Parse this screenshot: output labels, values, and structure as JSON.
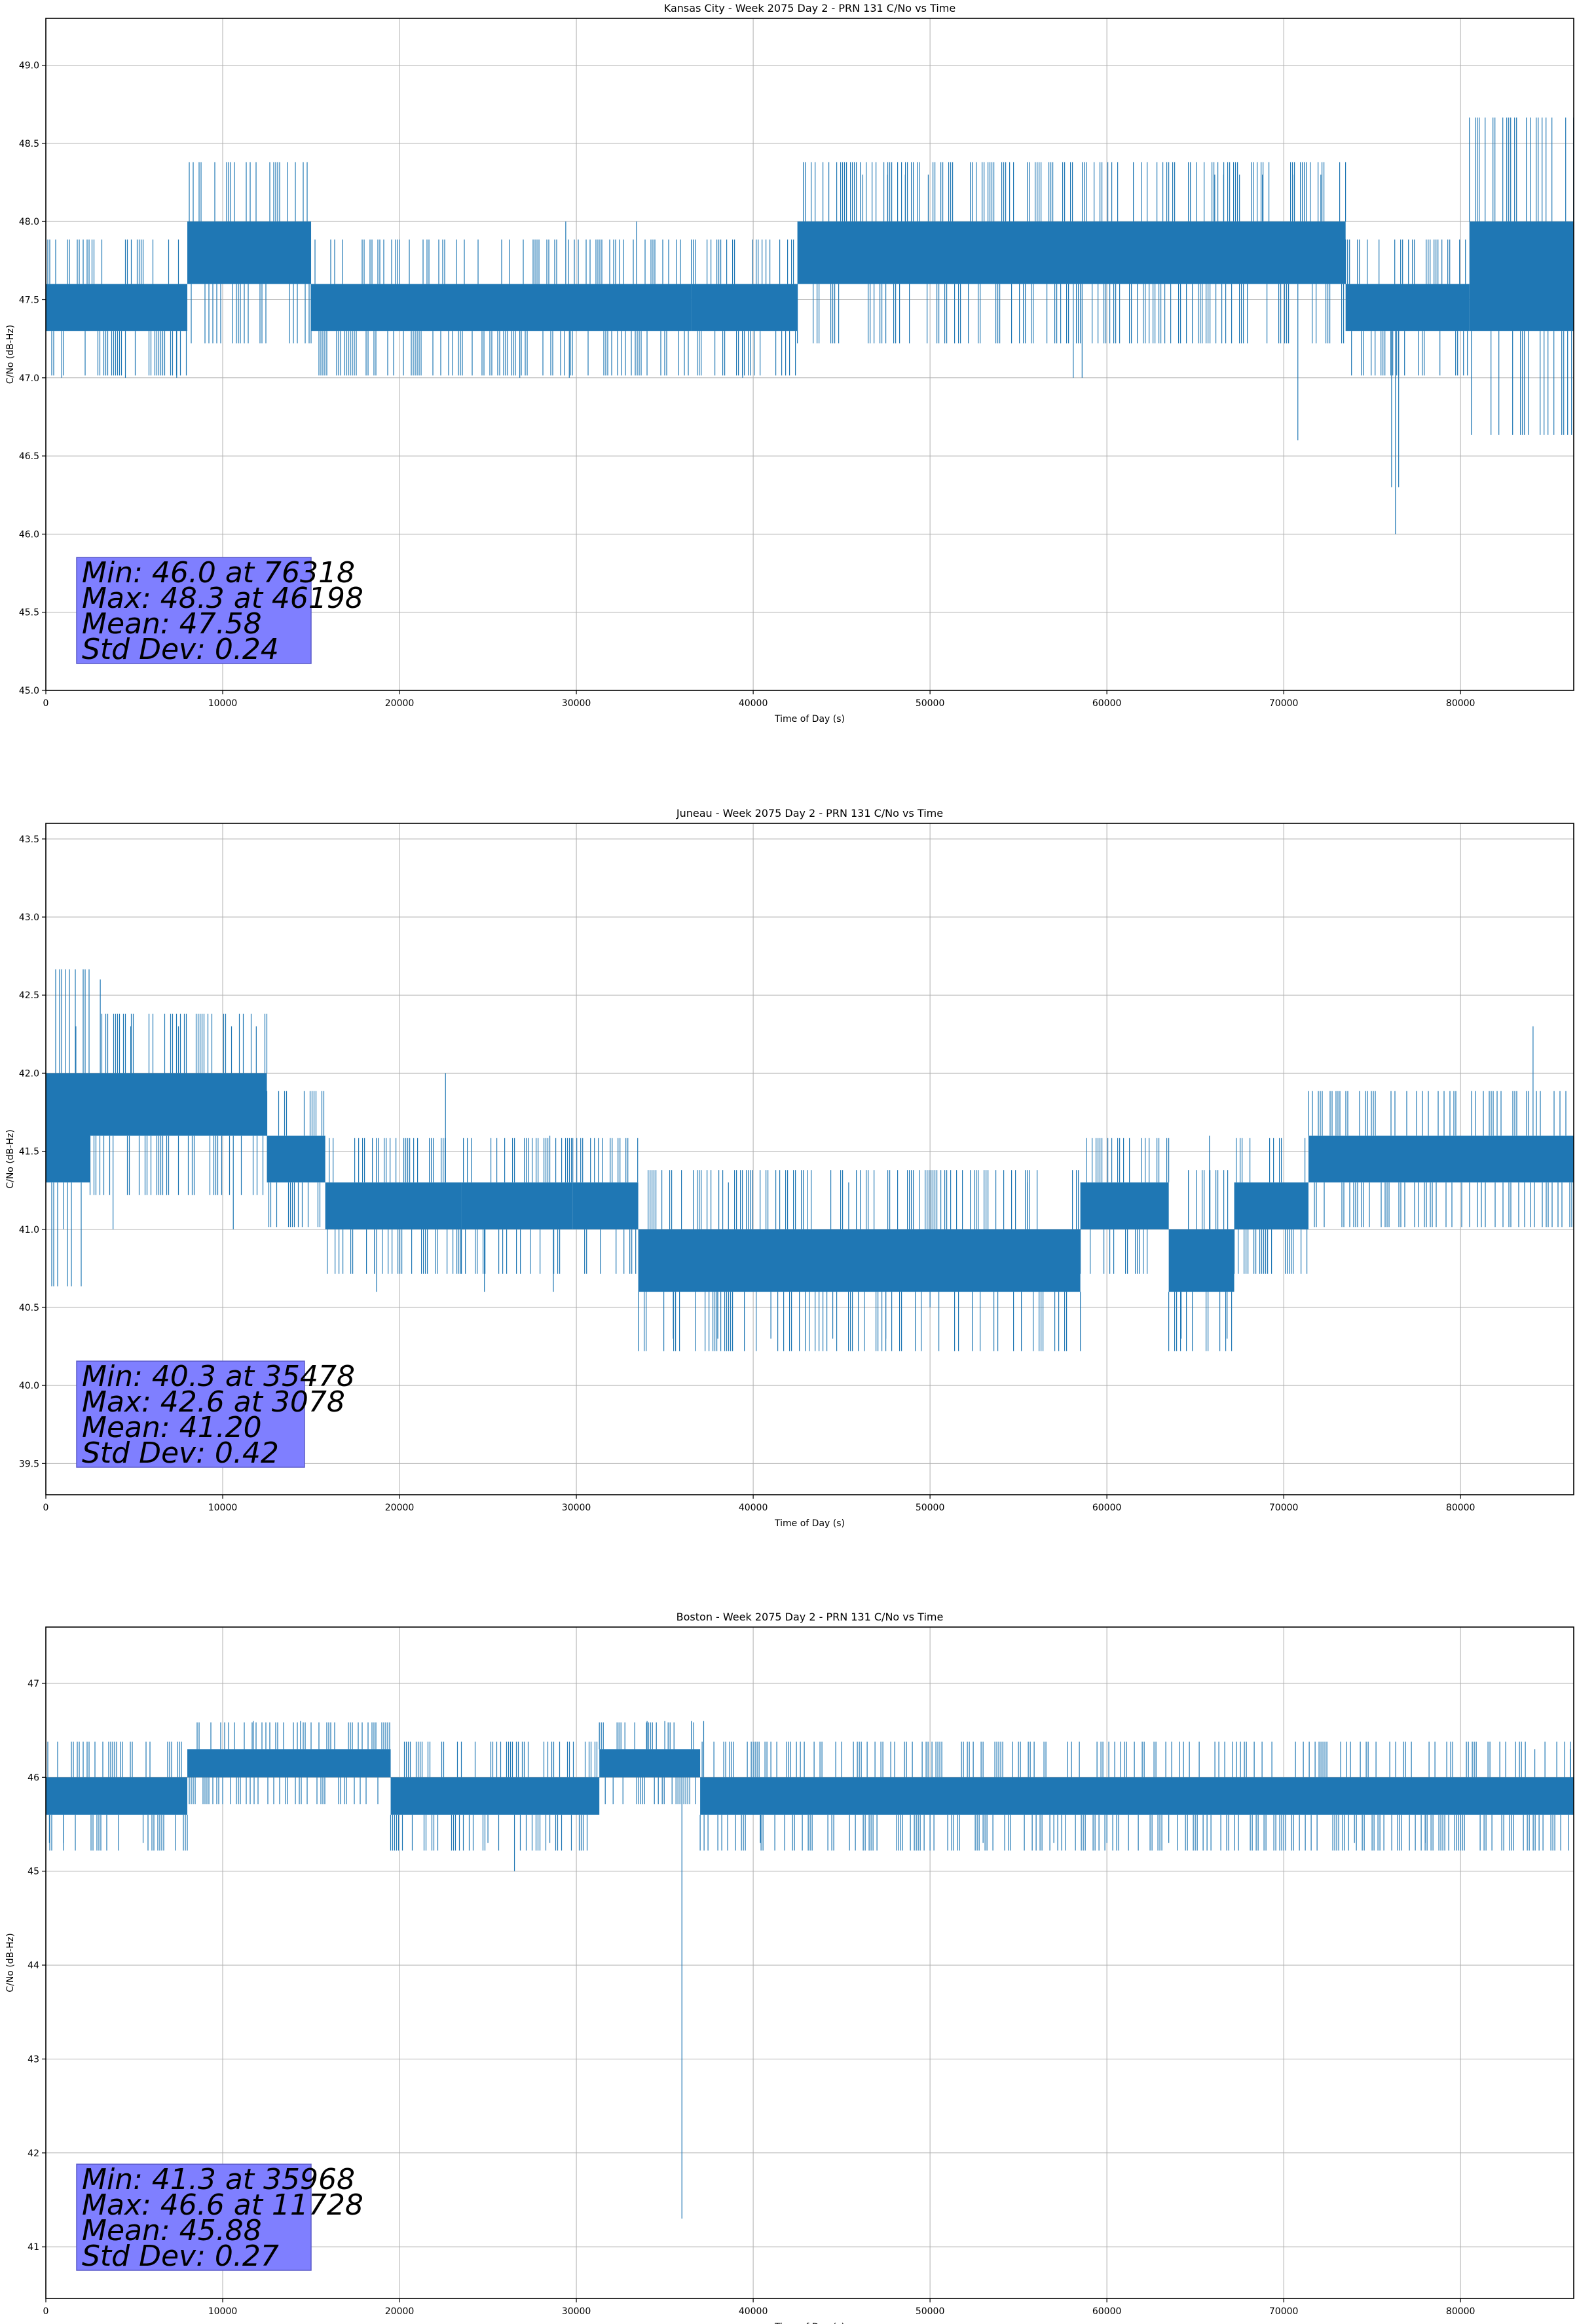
{
  "chart_data": [
    {
      "type": "line",
      "title": "Kansas City - Week 2075 Day 2 - PRN 131 C/No vs Time",
      "xlabel": "Time of Day (s)",
      "ylabel": "C/No (dB-Hz)",
      "xlim": [
        0,
        86400
      ],
      "ylim": [
        45.0,
        49.3
      ],
      "xticks": [
        0,
        10000,
        20000,
        30000,
        40000,
        50000,
        60000,
        70000,
        80000
      ],
      "yticks": [
        45.0,
        45.5,
        46.0,
        46.5,
        47.0,
        47.5,
        48.0,
        48.5,
        49.0
      ],
      "ytick_labels": [
        "45.0",
        "45.5",
        "46.0",
        "46.5",
        "47.0",
        "47.5",
        "48.0",
        "48.5",
        "49.0"
      ],
      "grid": true,
      "series_color": "#1f77b4",
      "bands": [
        {
          "x": [
            0,
            2500
          ],
          "y": [
            47.3,
            47.6
          ]
        },
        {
          "x": [
            2500,
            8000
          ],
          "y": [
            47.3,
            47.6
          ]
        },
        {
          "x": [
            8000,
            15000
          ],
          "y": [
            47.6,
            48.0
          ]
        },
        {
          "x": [
            15000,
            36500
          ],
          "y": [
            47.3,
            47.6
          ]
        },
        {
          "x": [
            36500,
            42500
          ],
          "y": [
            47.3,
            47.6
          ]
        },
        {
          "x": [
            42500,
            73500
          ],
          "y": [
            47.6,
            48.0
          ]
        },
        {
          "x": [
            73500,
            80500
          ],
          "y": [
            47.3,
            47.6
          ]
        },
        {
          "x": [
            80500,
            86400
          ],
          "y": [
            47.3,
            48.0
          ]
        }
      ],
      "spikes": [
        {
          "x": 46198,
          "y": 48.3
        },
        {
          "x": 47600,
          "y": 48.3
        },
        {
          "x": 48600,
          "y": 48.3
        },
        {
          "x": 49900,
          "y": 48.3
        },
        {
          "x": 66100,
          "y": 48.3
        },
        {
          "x": 66600,
          "y": 48.3
        },
        {
          "x": 67500,
          "y": 48.3
        },
        {
          "x": 68800,
          "y": 48.3
        },
        {
          "x": 70600,
          "y": 48.3
        },
        {
          "x": 72100,
          "y": 48.3
        },
        {
          "x": 70800,
          "y": 46.6
        },
        {
          "x": 76318,
          "y": 46.0
        },
        {
          "x": 76100,
          "y": 46.3
        },
        {
          "x": 76500,
          "y": 46.3
        },
        {
          "x": 29400,
          "y": 48.0
        },
        {
          "x": 33400,
          "y": 48.0
        },
        {
          "x": 900,
          "y": 47.0
        },
        {
          "x": 4500,
          "y": 47.0
        },
        {
          "x": 7400,
          "y": 47.0
        },
        {
          "x": 26800,
          "y": 47.0
        },
        {
          "x": 29600,
          "y": 47.0
        },
        {
          "x": 39400,
          "y": 47.0
        },
        {
          "x": 58100,
          "y": 47.0
        },
        {
          "x": 58600,
          "y": 47.0
        }
      ],
      "stats": [
        "Min: 46.0 at 76318",
        "Max: 48.3 at 46198",
        "Mean: 47.58",
        "Std Dev: 0.24"
      ]
    },
    {
      "type": "line",
      "title": "Juneau - Week 2075 Day 2 - PRN 131 C/No vs Time",
      "xlabel": "Time of Day (s)",
      "ylabel": "C/No (dB-Hz)",
      "xlim": [
        0,
        86400
      ],
      "ylim": [
        39.3,
        43.6
      ],
      "xticks": [
        0,
        10000,
        20000,
        30000,
        40000,
        50000,
        60000,
        70000,
        80000
      ],
      "yticks": [
        39.5,
        40.0,
        40.5,
        41.0,
        41.5,
        42.0,
        42.5,
        43.0,
        43.5
      ],
      "ytick_labels": [
        "39.5",
        "40.0",
        "40.5",
        "41.0",
        "41.5",
        "42.0",
        "42.5",
        "43.0",
        "43.5"
      ],
      "grid": true,
      "series_color": "#1f77b4",
      "bands": [
        {
          "x": [
            0,
            2500
          ],
          "y": [
            41.3,
            42.0
          ]
        },
        {
          "x": [
            2500,
            12500
          ],
          "y": [
            41.6,
            42.0
          ]
        },
        {
          "x": [
            12500,
            15800
          ],
          "y": [
            41.3,
            41.6
          ]
        },
        {
          "x": [
            15800,
            23500
          ],
          "y": [
            41.0,
            41.3
          ]
        },
        {
          "x": [
            23500,
            29800
          ],
          "y": [
            41.0,
            41.3
          ]
        },
        {
          "x": [
            29800,
            33500
          ],
          "y": [
            41.0,
            41.3
          ]
        },
        {
          "x": [
            33500,
            58500
          ],
          "y": [
            40.6,
            41.0
          ]
        },
        {
          "x": [
            58500,
            63500
          ],
          "y": [
            41.0,
            41.3
          ]
        },
        {
          "x": [
            63500,
            67200
          ],
          "y": [
            40.6,
            41.0
          ]
        },
        {
          "x": [
            67200,
            71400
          ],
          "y": [
            41.0,
            41.3
          ]
        },
        {
          "x": [
            71400,
            86400
          ],
          "y": [
            41.3,
            41.6
          ]
        }
      ],
      "spikes": [
        {
          "x": 3078,
          "y": 42.6
        },
        {
          "x": 1700,
          "y": 42.3
        },
        {
          "x": 4800,
          "y": 42.3
        },
        {
          "x": 7500,
          "y": 42.3
        },
        {
          "x": 10500,
          "y": 42.3
        },
        {
          "x": 11900,
          "y": 42.3
        },
        {
          "x": 22600,
          "y": 42.0
        },
        {
          "x": 84100,
          "y": 42.3
        },
        {
          "x": 1000,
          "y": 41.0
        },
        {
          "x": 3800,
          "y": 41.0
        },
        {
          "x": 10600,
          "y": 41.0
        },
        {
          "x": 18700,
          "y": 40.6
        },
        {
          "x": 24800,
          "y": 40.6
        },
        {
          "x": 28700,
          "y": 40.6
        },
        {
          "x": 28500,
          "y": 41.6
        },
        {
          "x": 35478,
          "y": 40.3
        },
        {
          "x": 38000,
          "y": 40.3
        },
        {
          "x": 41000,
          "y": 40.3
        },
        {
          "x": 44500,
          "y": 40.3
        },
        {
          "x": 47500,
          "y": 40.3
        },
        {
          "x": 50000,
          "y": 40.5
        },
        {
          "x": 38600,
          "y": 41.3
        },
        {
          "x": 45400,
          "y": 41.3
        },
        {
          "x": 55500,
          "y": 41.3
        },
        {
          "x": 64200,
          "y": 40.3
        },
        {
          "x": 66800,
          "y": 40.3
        },
        {
          "x": 65800,
          "y": 41.6
        }
      ],
      "stats": [
        "Min: 40.3 at 35478",
        "Max: 42.6 at 3078",
        "Mean: 41.20",
        "Std Dev: 0.42"
      ]
    },
    {
      "type": "line",
      "title": "Boston - Week 2075 Day 2 - PRN 131 C/No vs Time",
      "xlabel": "Time of Day (s)",
      "ylabel": "C/No (dB-Hz)",
      "xlim": [
        0,
        86400
      ],
      "ylim": [
        40.45,
        47.6
      ],
      "xticks": [
        0,
        10000,
        20000,
        30000,
        40000,
        50000,
        60000,
        70000,
        80000
      ],
      "yticks": [
        41,
        42,
        43,
        44,
        45,
        46,
        47
      ],
      "ytick_labels": [
        "41",
        "42",
        "43",
        "44",
        "45",
        "46",
        "47"
      ],
      "grid": true,
      "series_color": "#1f77b4",
      "bands": [
        {
          "x": [
            0,
            8000
          ],
          "y": [
            45.6,
            46.0
          ]
        },
        {
          "x": [
            8000,
            19500
          ],
          "y": [
            46.0,
            46.3
          ]
        },
        {
          "x": [
            19500,
            31300
          ],
          "y": [
            45.6,
            46.0
          ]
        },
        {
          "x": [
            31300,
            37000
          ],
          "y": [
            46.0,
            46.3
          ]
        },
        {
          "x": [
            37000,
            86400
          ],
          "y": [
            45.6,
            46.0
          ]
        }
      ],
      "spikes": [
        {
          "x": 35968,
          "y": 41.3
        },
        {
          "x": 11728,
          "y": 46.6
        },
        {
          "x": 14400,
          "y": 46.6
        },
        {
          "x": 34000,
          "y": 46.6
        },
        {
          "x": 35000,
          "y": 46.6
        },
        {
          "x": 36500,
          "y": 46.6
        },
        {
          "x": 37200,
          "y": 46.6
        },
        {
          "x": 26500,
          "y": 45.0
        },
        {
          "x": 200,
          "y": 45.3
        },
        {
          "x": 1000,
          "y": 45.3
        },
        {
          "x": 5500,
          "y": 45.3
        },
        {
          "x": 25000,
          "y": 45.3
        },
        {
          "x": 28500,
          "y": 45.3
        },
        {
          "x": 40400,
          "y": 45.3
        },
        {
          "x": 53000,
          "y": 45.3
        },
        {
          "x": 57000,
          "y": 45.3
        },
        {
          "x": 60000,
          "y": 45.3
        },
        {
          "x": 63500,
          "y": 45.3
        },
        {
          "x": 74000,
          "y": 45.3
        },
        {
          "x": 78000,
          "y": 45.3
        },
        {
          "x": 84200,
          "y": 46.3
        },
        {
          "x": 86200,
          "y": 46.3
        }
      ],
      "stats": [
        "Min: 41.3 at 35968",
        "Max: 46.6 at 11728",
        "Mean: 45.88",
        "Std Dev: 0.27"
      ]
    }
  ]
}
